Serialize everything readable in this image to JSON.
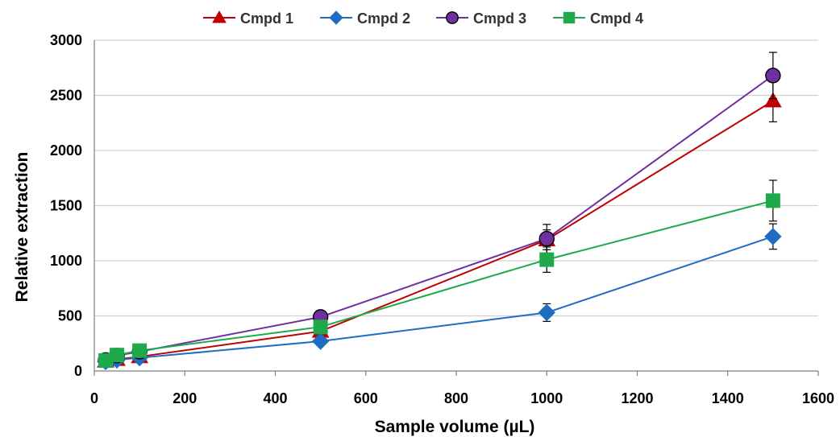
{
  "chart_data": {
    "type": "line",
    "title": "",
    "xlabel": "Sample volume (µL)",
    "ylabel": "Relative extraction",
    "xlim": [
      0,
      1600
    ],
    "ylim": [
      0,
      3000
    ],
    "x_ticks": [
      "0",
      "200",
      "400",
      "600",
      "800",
      "1000",
      "1200",
      "1400",
      "1600"
    ],
    "y_ticks": [
      "0",
      "500",
      "1000",
      "1500",
      "2000",
      "2500",
      "3000"
    ],
    "grid": "horizontal",
    "legend_position": "top",
    "series": [
      {
        "name": "Cmpd 1",
        "color": "#C00000",
        "marker": "triangle",
        "points": [
          {
            "x": 25,
            "y": 90,
            "err": 10
          },
          {
            "x": 50,
            "y": 105,
            "err": 12
          },
          {
            "x": 100,
            "y": 130,
            "err": 15
          },
          {
            "x": 500,
            "y": 360,
            "err": 30
          },
          {
            "x": 1000,
            "y": 1190,
            "err": 90
          },
          {
            "x": 1500,
            "y": 2450,
            "err": 190
          }
        ]
      },
      {
        "name": "Cmpd 2",
        "color": "#1F6DC2",
        "marker": "diamond",
        "points": [
          {
            "x": 25,
            "y": 85,
            "err": 10
          },
          {
            "x": 50,
            "y": 100,
            "err": 10
          },
          {
            "x": 100,
            "y": 120,
            "err": 12
          },
          {
            "x": 500,
            "y": 270,
            "err": 25
          },
          {
            "x": 1000,
            "y": 530,
            "err": 80
          },
          {
            "x": 1500,
            "y": 1220,
            "err": 115
          }
        ]
      },
      {
        "name": "Cmpd 3",
        "color": "#7030A0",
        "marker": "circle",
        "points": [
          {
            "x": 25,
            "y": 100,
            "err": 10
          },
          {
            "x": 50,
            "y": 140,
            "err": 12
          },
          {
            "x": 100,
            "y": 175,
            "err": 15
          },
          {
            "x": 500,
            "y": 490,
            "err": 30
          },
          {
            "x": 1000,
            "y": 1200,
            "err": 130
          },
          {
            "x": 1500,
            "y": 2680,
            "err": 210
          }
        ]
      },
      {
        "name": "Cmpd 4",
        "color": "#1EAA4B",
        "marker": "square",
        "points": [
          {
            "x": 25,
            "y": 95,
            "err": 10
          },
          {
            "x": 50,
            "y": 145,
            "err": 12
          },
          {
            "x": 100,
            "y": 185,
            "err": 15
          },
          {
            "x": 500,
            "y": 400,
            "err": 30
          },
          {
            "x": 1000,
            "y": 1010,
            "err": 115
          },
          {
            "x": 1500,
            "y": 1545,
            "err": 185
          }
        ]
      }
    ]
  }
}
